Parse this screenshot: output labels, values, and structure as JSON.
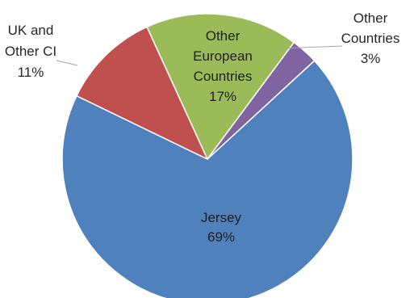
{
  "chart_data": {
    "type": "pie",
    "title": "",
    "slices": [
      {
        "key": "jersey",
        "label": [
          "Jersey"
        ],
        "percent_label": "69%",
        "value": 69,
        "color": "#4F81BD"
      },
      {
        "key": "uk",
        "label": [
          "UK and",
          "Other CI"
        ],
        "percent_label": "11%",
        "value": 11,
        "color": "#C0504D"
      },
      {
        "key": "european",
        "label": [
          "Other",
          "European",
          "Countries"
        ],
        "percent_label": "17%",
        "value": 17,
        "color": "#9BBB59"
      },
      {
        "key": "other",
        "label": [
          "Other",
          "Countries"
        ],
        "percent_label": "3%",
        "value": 3,
        "color": "#8064A2"
      }
    ],
    "legend": false
  }
}
